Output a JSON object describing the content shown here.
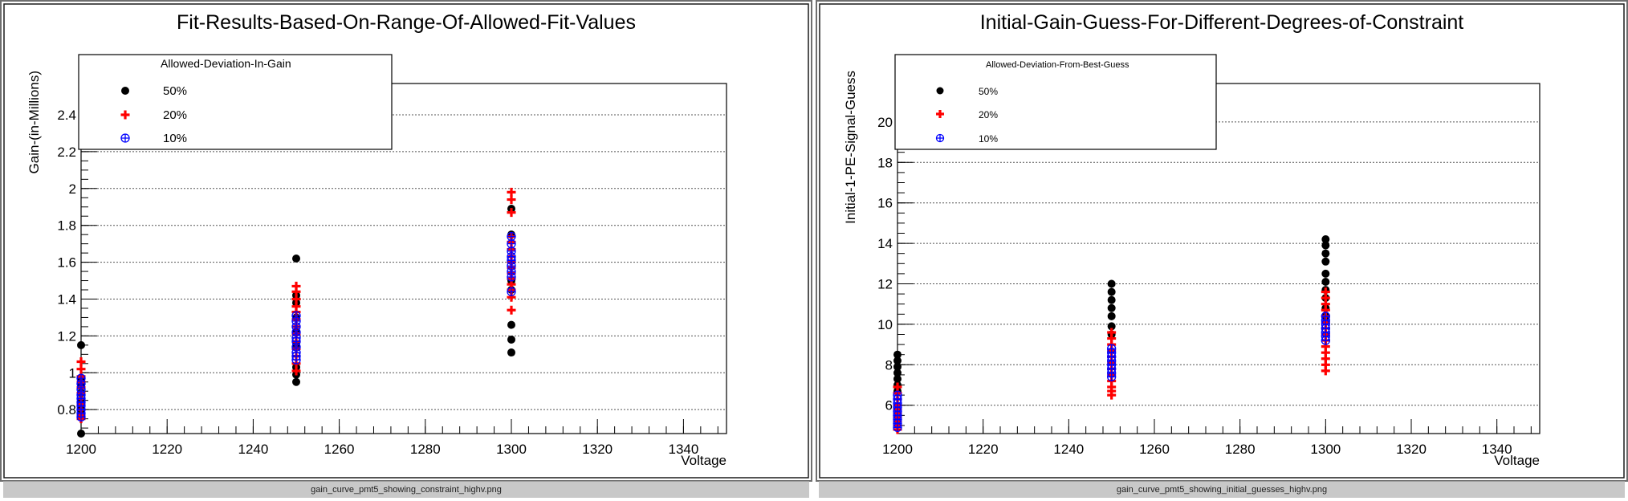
{
  "panels": [
    {
      "filename": "gain_curve_pmt5_showing_constraint_highv.png",
      "chart_data": {
        "type": "scatter",
        "title": "Fit-Results-Based-On-Range-Of-Allowed-Fit-Values",
        "xlabel": "Voltage",
        "ylabel": "Gain-(in-Millions)",
        "xlim": [
          1200,
          1350
        ],
        "ylim": [
          0.67,
          2.57
        ],
        "xticks": [
          1200,
          1220,
          1240,
          1260,
          1280,
          1300,
          1320,
          1340
        ],
        "xtick_labels": [
          "1200",
          "1220",
          "1240",
          "1260",
          "1280",
          "1300",
          "1320",
          "1340"
        ],
        "yticks": [
          0.8,
          1.0,
          1.2,
          1.4,
          1.6,
          1.8,
          2.0,
          2.2,
          2.4
        ],
        "ytick_labels": [
          "0.8",
          "1",
          "1.2",
          "1.4",
          "1.6",
          "1.8",
          "2",
          "2.2",
          "2.4"
        ],
        "grid": "horizontal",
        "legend": {
          "title": "Allowed-Deviation-In-Gain",
          "position": "top-left",
          "entries": [
            "50%",
            "20%",
            "10%"
          ]
        },
        "series": [
          {
            "name": "50%",
            "marker": "filled-circle",
            "color": "#000000",
            "x": [
              1200,
              1200,
              1200,
              1200,
              1200,
              1200,
              1200,
              1200,
              1250,
              1250,
              1250,
              1250,
              1250,
              1250,
              1250,
              1250,
              1250,
              1300,
              1300,
              1300,
              1300,
              1300,
              1300,
              1300
            ],
            "y": [
              1.15,
              0.97,
              0.93,
              0.89,
              0.85,
              0.8,
              0.77,
              0.67,
              1.62,
              1.42,
              1.38,
              1.3,
              1.22,
              1.15,
              1.03,
              0.99,
              0.95,
              1.89,
              1.75,
              1.5,
              1.45,
              1.26,
              1.18,
              1.11
            ]
          },
          {
            "name": "20%",
            "marker": "cross",
            "color": "#ff0000",
            "x": [
              1200,
              1200,
              1200,
              1200,
              1200,
              1200,
              1200,
              1200,
              1200,
              1200,
              1200,
              1250,
              1250,
              1250,
              1250,
              1250,
              1250,
              1250,
              1250,
              1250,
              1250,
              1250,
              1250,
              1250,
              1300,
              1300,
              1300,
              1300,
              1300,
              1300,
              1300,
              1300,
              1300,
              1300,
              1300,
              1300,
              1300,
              1300,
              1300
            ],
            "y": [
              1.06,
              1.02,
              0.98,
              0.95,
              0.92,
              0.89,
              0.86,
              0.83,
              0.8,
              0.77,
              0.75,
              1.47,
              1.44,
              1.4,
              1.36,
              1.33,
              1.29,
              1.25,
              1.21,
              1.17,
              1.13,
              1.09,
              1.05,
              1.01,
              1.98,
              1.94,
              1.87,
              1.74,
              1.71,
              1.67,
              1.63,
              1.6,
              1.57,
              1.54,
              1.51,
              1.48,
              1.45,
              1.41,
              1.34
            ]
          },
          {
            "name": "10%",
            "marker": "circle-plus",
            "color": "#0000ff",
            "x": [
              1200,
              1200,
              1200,
              1200,
              1200,
              1200,
              1200,
              1200,
              1200,
              1200,
              1250,
              1250,
              1250,
              1250,
              1250,
              1250,
              1250,
              1250,
              1250,
              1250,
              1300,
              1300,
              1300,
              1300,
              1300,
              1300,
              1300,
              1300,
              1300
            ],
            "y": [
              0.97,
              0.94,
              0.91,
              0.88,
              0.86,
              0.84,
              0.82,
              0.8,
              0.78,
              0.76,
              1.31,
              1.28,
              1.25,
              1.22,
              1.19,
              1.17,
              1.14,
              1.11,
              1.09,
              1.07,
              1.74,
              1.7,
              1.66,
              1.63,
              1.61,
              1.58,
              1.55,
              1.52,
              1.44
            ]
          }
        ]
      }
    },
    {
      "filename": "gain_curve_pmt5_showing_initial_guesses_highv.png",
      "chart_data": {
        "type": "scatter",
        "title": "Initial-Gain-Guess-For-Different-Degrees-of-Constraint",
        "xlabel": "Voltage",
        "ylabel": "Initial-1-PE-Signal-Guess",
        "xlim": [
          1200,
          1350
        ],
        "ylim": [
          4.6,
          21.9
        ],
        "xticks": [
          1200,
          1220,
          1240,
          1260,
          1280,
          1300,
          1320,
          1340
        ],
        "xtick_labels": [
          "1200",
          "1220",
          "1240",
          "1260",
          "1280",
          "1300",
          "1320",
          "1340"
        ],
        "yticks": [
          6,
          8,
          10,
          12,
          14,
          16,
          18,
          20
        ],
        "ytick_labels": [
          "6",
          "8",
          "10",
          "12",
          "14",
          "16",
          "18",
          "20"
        ],
        "grid": "horizontal",
        "legend": {
          "title": "Allowed-Deviation-From-Best-Guess",
          "position": "top-left",
          "entries": [
            "50%",
            "20%",
            "10%"
          ]
        },
        "series": [
          {
            "name": "50%",
            "marker": "filled-circle",
            "color": "#000000",
            "x": [
              1200,
              1200,
              1200,
              1200,
              1200,
              1200,
              1200,
              1250,
              1250,
              1250,
              1250,
              1250,
              1250,
              1250,
              1300,
              1300,
              1300,
              1300,
              1300,
              1300,
              1300,
              1300,
              1300,
              1300
            ],
            "y": [
              8.5,
              8.2,
              7.9,
              7.6,
              7.3,
              7.0,
              6.7,
              12.0,
              11.6,
              11.2,
              10.8,
              10.4,
              9.9,
              9.5,
              14.2,
              13.9,
              13.5,
              13.1,
              12.5,
              12.1,
              11.7,
              11.3,
              10.8,
              10.4
            ]
          },
          {
            "name": "20%",
            "marker": "cross",
            "color": "#ff0000",
            "x": [
              1200,
              1200,
              1200,
              1200,
              1200,
              1200,
              1200,
              1200,
              1200,
              1200,
              1250,
              1250,
              1250,
              1250,
              1250,
              1250,
              1250,
              1250,
              1250,
              1250,
              1250,
              1250,
              1300,
              1300,
              1300,
              1300,
              1300,
              1300,
              1300,
              1300,
              1300,
              1300,
              1300,
              1300,
              1300,
              1300
            ],
            "y": [
              6.9,
              6.6,
              6.3,
              6.0,
              5.8,
              5.6,
              5.4,
              5.2,
              5.0,
              4.8,
              9.6,
              9.3,
              9.0,
              8.7,
              8.4,
              8.1,
              7.8,
              7.5,
              7.2,
              6.9,
              6.7,
              6.5,
              11.6,
              11.3,
              11.0,
              10.7,
              10.4,
              10.1,
              9.8,
              9.5,
              9.2,
              8.9,
              8.6,
              8.3,
              8.0,
              7.7
            ]
          },
          {
            "name": "10%",
            "marker": "circle-plus",
            "color": "#0000ff",
            "x": [
              1200,
              1200,
              1200,
              1200,
              1200,
              1200,
              1200,
              1200,
              1200,
              1250,
              1250,
              1250,
              1250,
              1250,
              1250,
              1250,
              1250,
              1300,
              1300,
              1300,
              1300,
              1300,
              1300,
              1300
            ],
            "y": [
              6.5,
              6.3,
              6.1,
              5.9,
              5.7,
              5.5,
              5.3,
              5.1,
              4.9,
              8.8,
              8.6,
              8.4,
              8.2,
              8.0,
              7.8,
              7.6,
              7.4,
              10.4,
              10.2,
              10.0,
              9.8,
              9.6,
              9.4,
              9.2
            ]
          }
        ]
      }
    }
  ]
}
